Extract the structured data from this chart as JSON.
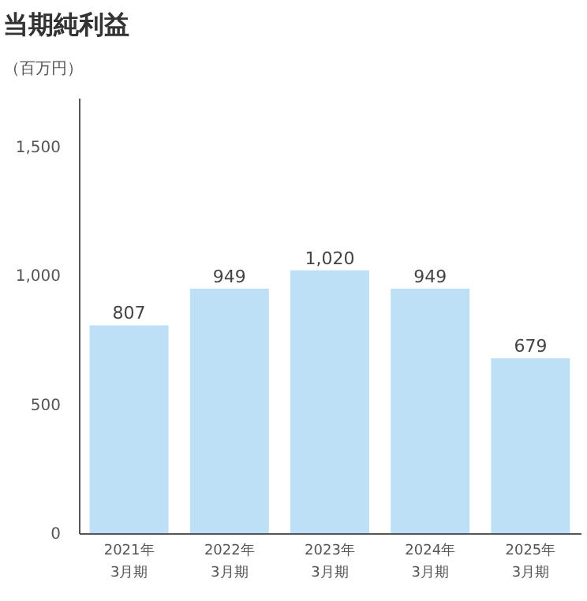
{
  "chart_data": {
    "type": "bar",
    "title": "当期純利益",
    "ylabel": "（百万円）",
    "categories": [
      "2021年\n3月期",
      "2022年\n3月期",
      "2023年\n3月期",
      "2024年\n3月期",
      "2025年\n3月期"
    ],
    "values": [
      807,
      949,
      1020,
      949,
      679
    ],
    "value_labels": [
      "807",
      "949",
      "1,020",
      "949",
      "679"
    ],
    "color": "#bde0f7",
    "ylim": [
      0,
      1690
    ],
    "yticks": [
      0,
      500,
      {
        "value": 1000,
        "label": "1,000"
      },
      {
        "value": 1500,
        "label": "1,500"
      }
    ],
    "grid": false
  }
}
